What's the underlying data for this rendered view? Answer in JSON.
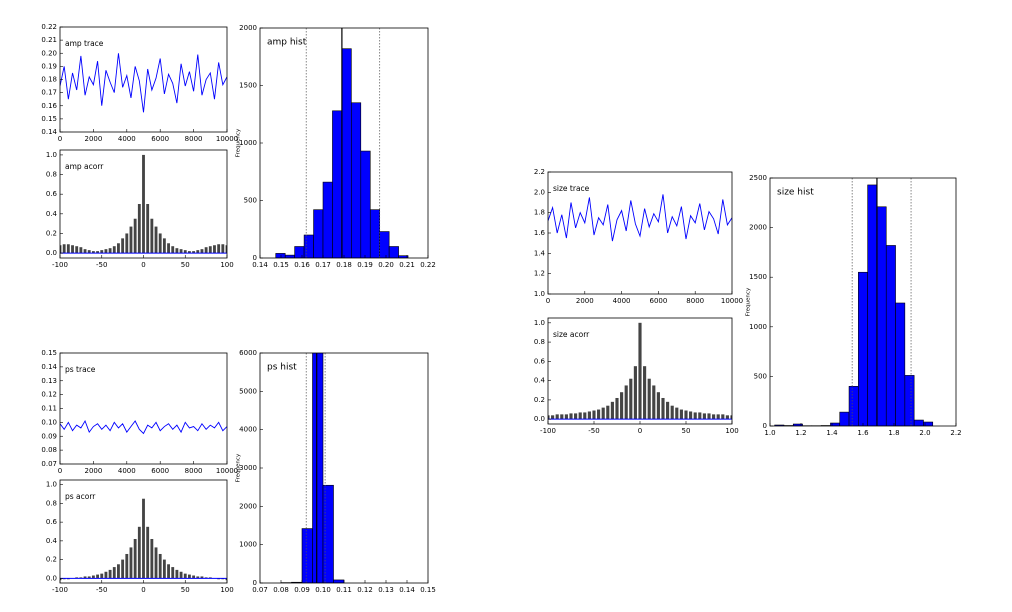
{
  "chart_data": [
    {
      "type": "line",
      "title": "amp trace",
      "color": "#0000ff",
      "x": [
        0,
        250,
        500,
        750,
        1000,
        1250,
        1500,
        1750,
        2000,
        2250,
        2500,
        2750,
        3000,
        3250,
        3500,
        3750,
        4000,
        4250,
        4500,
        4750,
        5000,
        5250,
        5500,
        5750,
        6000,
        6250,
        6500,
        6750,
        7000,
        7250,
        7500,
        7750,
        8000,
        8250,
        8500,
        8750,
        9000,
        9250,
        9500,
        9750,
        10000
      ],
      "values": [
        0.175,
        0.19,
        0.165,
        0.185,
        0.172,
        0.198,
        0.168,
        0.182,
        0.176,
        0.194,
        0.16,
        0.187,
        0.178,
        0.17,
        0.2,
        0.174,
        0.183,
        0.166,
        0.19,
        0.179,
        0.155,
        0.188,
        0.172,
        0.181,
        0.196,
        0.169,
        0.184,
        0.177,
        0.162,
        0.192,
        0.175,
        0.186,
        0.171,
        0.199,
        0.168,
        0.18,
        0.185,
        0.165,
        0.193,
        0.176,
        0.182
      ],
      "xlim": [
        0,
        10000
      ],
      "xticks": [
        0,
        2000,
        4000,
        6000,
        8000,
        10000
      ],
      "ylim": [
        0.14,
        0.22
      ],
      "yticks": [
        0.14,
        0.15,
        0.16,
        0.17,
        0.18,
        0.19,
        {
          "value": 0.2,
          "label": "0.20"
        },
        0.21,
        0.22
      ]
    },
    {
      "type": "acorr",
      "title": "amp acorr",
      "color": "#444444",
      "x": [
        -100,
        -95,
        -90,
        -85,
        -80,
        -75,
        -70,
        -65,
        -60,
        -55,
        -50,
        -45,
        -40,
        -35,
        -30,
        -25,
        -20,
        -15,
        -10,
        -5,
        0,
        5,
        10,
        15,
        20,
        25,
        30,
        35,
        40,
        45,
        50,
        55,
        60,
        65,
        70,
        75,
        80,
        85,
        90,
        95,
        100
      ],
      "values": [
        0.08,
        0.09,
        0.09,
        0.08,
        0.07,
        0.06,
        0.04,
        0.03,
        0.02,
        0.02,
        0.03,
        0.04,
        0.05,
        0.07,
        0.1,
        0.15,
        0.2,
        0.27,
        0.35,
        0.5,
        1.0,
        0.5,
        0.35,
        0.27,
        0.2,
        0.15,
        0.1,
        0.07,
        0.05,
        0.04,
        0.03,
        0.02,
        0.02,
        0.03,
        0.04,
        0.06,
        0.07,
        0.08,
        0.09,
        0.09,
        0.08
      ],
      "xlim": [
        -100,
        100
      ],
      "xticks": [
        -100,
        -50,
        0,
        50,
        100
      ],
      "ylim": [
        -0.05,
        1.05
      ],
      "yticks": [
        {
          "value": 0,
          "label": "0.0"
        },
        0.2,
        0.4,
        0.6,
        0.8,
        {
          "value": 1,
          "label": "1.0"
        }
      ]
    },
    {
      "type": "histogram",
      "title": "amp hist",
      "y_label": "Frequency",
      "color": "#0000ff",
      "bins": [
        0.1475,
        0.152,
        0.1565,
        0.161,
        0.1655,
        0.17,
        0.1745,
        0.179,
        0.1835,
        0.188,
        0.1925,
        0.197,
        0.2015,
        0.206,
        0.2105
      ],
      "values": [
        40,
        25,
        100,
        200,
        420,
        660,
        1280,
        1820,
        1350,
        930,
        420,
        230,
        100,
        20
      ],
      "mean": 0.179,
      "interval": [
        0.162,
        0.197
      ],
      "xlim": [
        0.14,
        0.22
      ],
      "xticks": [
        0.14,
        0.15,
        0.16,
        0.17,
        0.18,
        0.19,
        {
          "value": 0.2,
          "label": "0.20"
        },
        0.21,
        0.22
      ],
      "ylim": [
        0,
        2000
      ],
      "yticks": [
        0,
        500,
        1000,
        1500,
        2000
      ]
    },
    {
      "type": "line",
      "title": "ps trace",
      "color": "#0000ff",
      "x": [
        0,
        250,
        500,
        750,
        1000,
        1250,
        1500,
        1750,
        2000,
        2250,
        2500,
        2750,
        3000,
        3250,
        3500,
        3750,
        4000,
        4250,
        4500,
        4750,
        5000,
        5250,
        5500,
        5750,
        6000,
        6250,
        6500,
        6750,
        7000,
        7250,
        7500,
        7750,
        8000,
        8250,
        8500,
        8750,
        9000,
        9250,
        9500,
        9750,
        10000
      ],
      "values": [
        0.099,
        0.095,
        0.1,
        0.094,
        0.098,
        0.096,
        0.101,
        0.093,
        0.097,
        0.099,
        0.095,
        0.098,
        0.094,
        0.1,
        0.096,
        0.099,
        0.093,
        0.097,
        0.101,
        0.095,
        0.092,
        0.098,
        0.096,
        0.1,
        0.094,
        0.097,
        0.099,
        0.095,
        0.098,
        0.093,
        0.1,
        0.096,
        0.097,
        0.094,
        0.099,
        0.095,
        0.098,
        0.096,
        0.1,
        0.094,
        0.097
      ],
      "xlim": [
        0,
        10000
      ],
      "xticks": [
        0,
        2000,
        4000,
        6000,
        8000,
        10000
      ],
      "ylim": [
        0.07,
        0.15
      ],
      "yticks": [
        0.07,
        0.08,
        0.09,
        {
          "value": 0.1,
          "label": "0.10"
        },
        0.11,
        0.12,
        0.13,
        0.14,
        0.15
      ]
    },
    {
      "type": "acorr",
      "title": "ps acorr",
      "color": "#444444",
      "x": [
        -100,
        -95,
        -90,
        -85,
        -80,
        -75,
        -70,
        -65,
        -60,
        -55,
        -50,
        -45,
        -40,
        -35,
        -30,
        -25,
        -20,
        -15,
        -10,
        -5,
        0,
        5,
        10,
        15,
        20,
        25,
        30,
        35,
        40,
        45,
        50,
        55,
        60,
        65,
        70,
        75,
        80,
        85,
        90,
        95,
        100
      ],
      "values": [
        -0.02,
        -0.01,
        -0.01,
        0.0,
        0.01,
        0.01,
        0.02,
        0.02,
        0.03,
        0.04,
        0.05,
        0.07,
        0.09,
        0.12,
        0.15,
        0.2,
        0.26,
        0.33,
        0.42,
        0.55,
        0.85,
        0.55,
        0.42,
        0.33,
        0.26,
        0.2,
        0.15,
        0.12,
        0.09,
        0.07,
        0.05,
        0.04,
        0.03,
        0.02,
        0.02,
        0.01,
        0.01,
        0.0,
        -0.01,
        -0.01,
        -0.02
      ],
      "xlim": [
        -100,
        100
      ],
      "xticks": [
        -100,
        -50,
        0,
        50,
        100
      ],
      "ylim": [
        -0.05,
        1.05
      ],
      "yticks": [
        {
          "value": 0,
          "label": "0.0"
        },
        0.2,
        0.4,
        0.6,
        0.8,
        {
          "value": 1,
          "label": "1.0"
        }
      ]
    },
    {
      "type": "histogram",
      "title": "ps hist",
      "y_label": "Frequency",
      "color": "#0000ff",
      "bins": [
        0.08,
        0.085,
        0.09,
        0.095,
        0.1,
        0.105,
        0.11
      ],
      "values": [
        10,
        20,
        1420,
        6100,
        2550,
        80
      ],
      "mean": 0.097,
      "interval": [
        0.092,
        0.101
      ],
      "xlim": [
        0.07,
        0.15
      ],
      "xticks": [
        0.07,
        0.08,
        0.09,
        {
          "value": 0.1,
          "label": "0.10"
        },
        0.11,
        0.12,
        0.13,
        0.14,
        0.15
      ],
      "ylim": [
        0,
        6000
      ],
      "yticks": [
        0,
        1000,
        2000,
        3000,
        4000,
        5000,
        6000
      ]
    },
    {
      "type": "line",
      "title": "size trace",
      "color": "#0000ff",
      "x": [
        0,
        250,
        500,
        750,
        1000,
        1250,
        1500,
        1750,
        2000,
        2250,
        2500,
        2750,
        3000,
        3250,
        3500,
        3750,
        4000,
        4250,
        4500,
        4750,
        5000,
        5250,
        5500,
        5750,
        6000,
        6250,
        6500,
        6750,
        7000,
        7250,
        7500,
        7750,
        8000,
        8250,
        8500,
        8750,
        9000,
        9250,
        9500,
        9750,
        10000
      ],
      "values": [
        1.72,
        1.85,
        1.6,
        1.78,
        1.55,
        1.9,
        1.65,
        1.8,
        1.7,
        1.95,
        1.58,
        1.75,
        1.68,
        1.88,
        1.52,
        1.73,
        1.82,
        1.62,
        1.92,
        1.69,
        1.57,
        1.84,
        1.66,
        1.79,
        1.71,
        1.98,
        1.6,
        1.76,
        1.67,
        1.86,
        1.54,
        1.77,
        1.7,
        1.89,
        1.63,
        1.81,
        1.74,
        1.59,
        1.93,
        1.68,
        1.75
      ],
      "xlim": [
        0,
        10000
      ],
      "xticks": [
        0,
        2000,
        4000,
        6000,
        8000,
        10000
      ],
      "ylim": [
        1.0,
        2.2
      ],
      "yticks": [
        {
          "value": 1,
          "label": "1.0"
        },
        1.2,
        1.4,
        1.6,
        1.8,
        {
          "value": 2,
          "label": "2.0"
        },
        2.2
      ]
    },
    {
      "type": "acorr",
      "title": "size acorr",
      "color": "#444444",
      "x": [
        -100,
        -95,
        -90,
        -85,
        -80,
        -75,
        -70,
        -65,
        -60,
        -55,
        -50,
        -45,
        -40,
        -35,
        -30,
        -25,
        -20,
        -15,
        -10,
        -5,
        0,
        5,
        10,
        15,
        20,
        25,
        30,
        35,
        40,
        45,
        50,
        55,
        60,
        65,
        70,
        75,
        80,
        85,
        90,
        95,
        100
      ],
      "values": [
        0.04,
        0.04,
        0.05,
        0.05,
        0.05,
        0.06,
        0.06,
        0.07,
        0.07,
        0.08,
        0.09,
        0.1,
        0.12,
        0.14,
        0.18,
        0.22,
        0.28,
        0.35,
        0.42,
        0.55,
        1.0,
        0.55,
        0.42,
        0.35,
        0.28,
        0.22,
        0.18,
        0.14,
        0.12,
        0.1,
        0.09,
        0.08,
        0.07,
        0.07,
        0.06,
        0.06,
        0.05,
        0.05,
        0.05,
        0.04,
        0.04
      ],
      "xlim": [
        -100,
        100
      ],
      "xticks": [
        -100,
        -50,
        0,
        50,
        100
      ],
      "ylim": [
        -0.05,
        1.05
      ],
      "yticks": [
        {
          "value": 0,
          "label": "0.0"
        },
        0.2,
        0.4,
        0.6,
        0.8,
        {
          "value": 1,
          "label": "1.0"
        }
      ]
    },
    {
      "type": "histogram",
      "title": "size hist",
      "y_label": "Frequency",
      "color": "#0000ff",
      "bins": [
        1.03,
        1.09,
        1.15,
        1.21,
        1.27,
        1.33,
        1.39,
        1.45,
        1.51,
        1.57,
        1.63,
        1.69,
        1.75,
        1.81,
        1.87,
        1.93,
        1.99,
        2.05
      ],
      "values": [
        10,
        5,
        20,
        3,
        3,
        5,
        30,
        140,
        400,
        1550,
        2430,
        2210,
        1820,
        1240,
        510,
        60,
        40
      ],
      "mean": 1.69,
      "interval": [
        1.53,
        1.91
      ],
      "xlim": [
        1.0,
        2.2
      ],
      "xticks": [
        {
          "value": 1,
          "label": "1.0"
        },
        1.2,
        1.4,
        1.6,
        1.8,
        {
          "value": 2,
          "label": "2.0"
        },
        2.2
      ],
      "ylim": [
        0,
        2500
      ],
      "yticks": [
        0,
        500,
        1000,
        1500,
        2000,
        2500
      ]
    }
  ]
}
